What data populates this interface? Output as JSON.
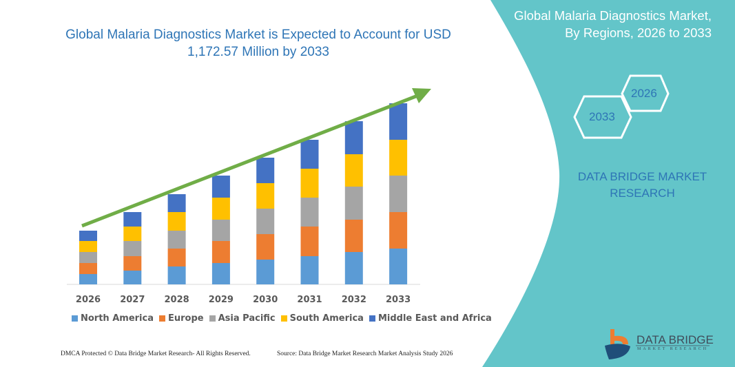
{
  "header": {
    "title": "Global Malaria Diagnostics Market is Expected to Account for USD 1,172.57 Million by 2033"
  },
  "side_panel": {
    "title_line1": "Global Malaria Diagnostics Market,",
    "title_line2": "By Regions, 2026 to 2033",
    "hex_years": [
      "2026",
      "2033"
    ],
    "brand_line1": "DATA BRIDGE MARKET",
    "brand_line2": "RESEARCH",
    "panel_color": "#63c5c9"
  },
  "logo": {
    "name": "DATA BRIDGE",
    "sub": "MARKET RESEARCH"
  },
  "footer": {
    "left": "DMCA Protected © Data Bridge Market Research-  All Rights Reserved.",
    "right": "Source: Data Bridge Market Research  Market Analysis Study 2026"
  },
  "chart_data": {
    "type": "bar",
    "stacked": true,
    "title": "Global Malaria Diagnostics Market is Expected to Account for USD 1,172.57 Million by 2033",
    "categories": [
      "2026",
      "2027",
      "2028",
      "2029",
      "2030",
      "2031",
      "2032",
      "2033"
    ],
    "series": [
      {
        "name": "North America",
        "color": "#5b9bd5",
        "values": [
          15,
          20,
          26,
          31,
          36,
          41,
          47,
          52
        ]
      },
      {
        "name": "Europe",
        "color": "#ed7d31",
        "values": [
          16,
          21,
          26,
          32,
          37,
          43,
          47,
          53
        ]
      },
      {
        "name": "Asia Pacific",
        "color": "#a5a5a5",
        "values": [
          16,
          22,
          26,
          31,
          37,
          42,
          48,
          53
        ]
      },
      {
        "name": "South America",
        "color": "#ffc000",
        "values": [
          16,
          21,
          27,
          32,
          37,
          42,
          47,
          52
        ]
      },
      {
        "name": "Middle East and Africa",
        "color": "#4472c4",
        "values": [
          15,
          21,
          26,
          32,
          37,
          42,
          48,
          53
        ]
      }
    ],
    "y_axis_shown": false,
    "grid": false,
    "legend_position": "bottom",
    "trend_arrow_color": "#70ad47"
  }
}
